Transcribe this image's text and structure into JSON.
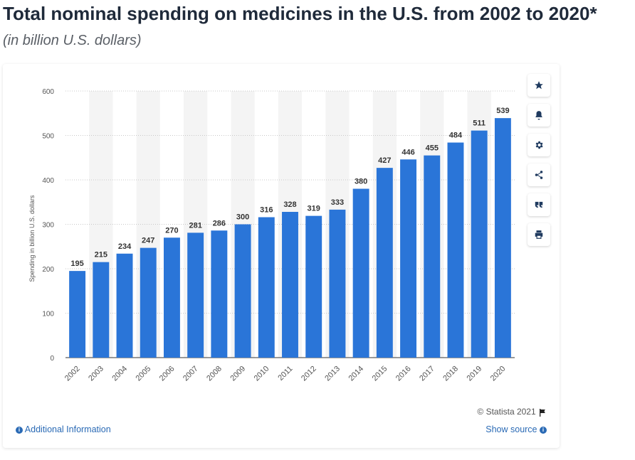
{
  "header": {
    "title": "Total nominal spending on medicines in the U.S. from 2002 to 2020*",
    "subtitle": "(in billion U.S. dollars)"
  },
  "footer": {
    "copyright": "© Statista 2021",
    "additional_info": "Additional Information",
    "show_source": "Show source"
  },
  "side_buttons": [
    {
      "name": "star-button",
      "icon": "star-icon"
    },
    {
      "name": "bell-button",
      "icon": "bell-icon"
    },
    {
      "name": "settings-button",
      "icon": "gear-icon"
    },
    {
      "name": "share-button",
      "icon": "share-icon"
    },
    {
      "name": "cite-button",
      "icon": "quote-icon"
    },
    {
      "name": "print-button",
      "icon": "print-icon"
    }
  ],
  "colors": {
    "bar": "#2a75d8",
    "stripe": "#f4f4f4",
    "grid": "#c8c8c8",
    "link": "#2a6ab5"
  },
  "chart_data": {
    "type": "bar",
    "title": "Total nominal spending on medicines in the U.S. from 2002 to 2020*",
    "subtitle": "(in billion U.S. dollars)",
    "xlabel": "",
    "ylabel": "Spending in billion U.S. dollars",
    "ylim": [
      0,
      600
    ],
    "yticks": [
      0,
      100,
      200,
      300,
      400,
      500,
      600
    ],
    "grid": true,
    "categories": [
      "2002",
      "2003",
      "2004",
      "2005",
      "2006",
      "2007",
      "2008",
      "2009",
      "2010",
      "2011",
      "2012",
      "2013",
      "2014",
      "2015",
      "2016",
      "2017",
      "2018",
      "2019",
      "2020"
    ],
    "values": [
      195,
      215,
      234,
      247,
      270,
      281,
      286,
      300,
      316,
      328,
      319,
      333,
      380,
      427,
      446,
      455,
      484,
      511,
      539
    ],
    "data_labels": true
  }
}
